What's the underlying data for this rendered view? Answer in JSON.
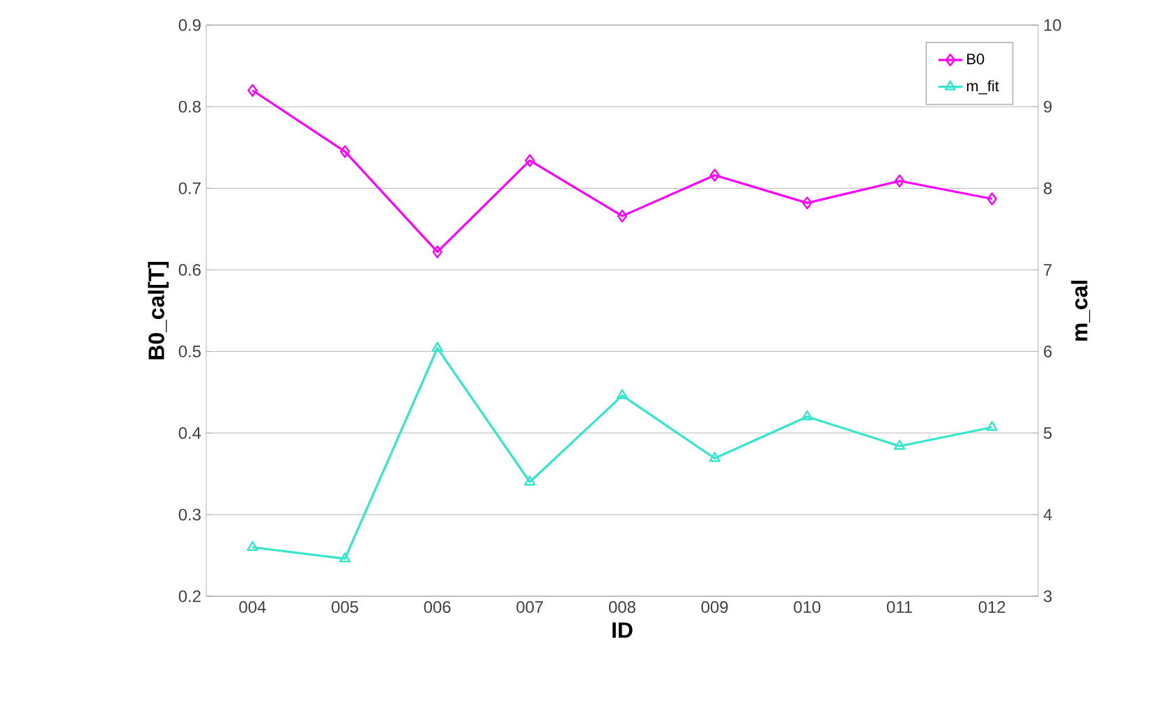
{
  "chart_data": {
    "type": "line",
    "xlabel": "ID",
    "ylabel": "B0_cal[T]",
    "y2label": "m_cal",
    "categories": [
      "004",
      "005",
      "006",
      "007",
      "008",
      "009",
      "010",
      "011",
      "012"
    ],
    "series": [
      {
        "name": "B0",
        "color": "#ff00ff",
        "marker": "diamond",
        "values": [
          0.82,
          0.745,
          0.622,
          0.734,
          0.666,
          0.716,
          0.682,
          0.709,
          0.687
        ]
      },
      {
        "name": "m_fit",
        "color": "#33e6cc",
        "marker": "triangle",
        "axis": "y2",
        "values": [
          3.6,
          3.46,
          6.04,
          4.4,
          5.46,
          4.69,
          5.2,
          4.84,
          5.07
        ]
      }
    ],
    "ylim": [
      0.2,
      0.9
    ],
    "yticks": [
      0.2,
      0.3,
      0.4,
      0.5,
      0.6,
      0.7,
      0.8,
      0.9
    ],
    "y2lim": [
      3,
      10
    ],
    "y2ticks": [
      3,
      4,
      5,
      6,
      7,
      8,
      9,
      10
    ],
    "grid": "y",
    "legend": "top right",
    "line_style": "solid"
  }
}
